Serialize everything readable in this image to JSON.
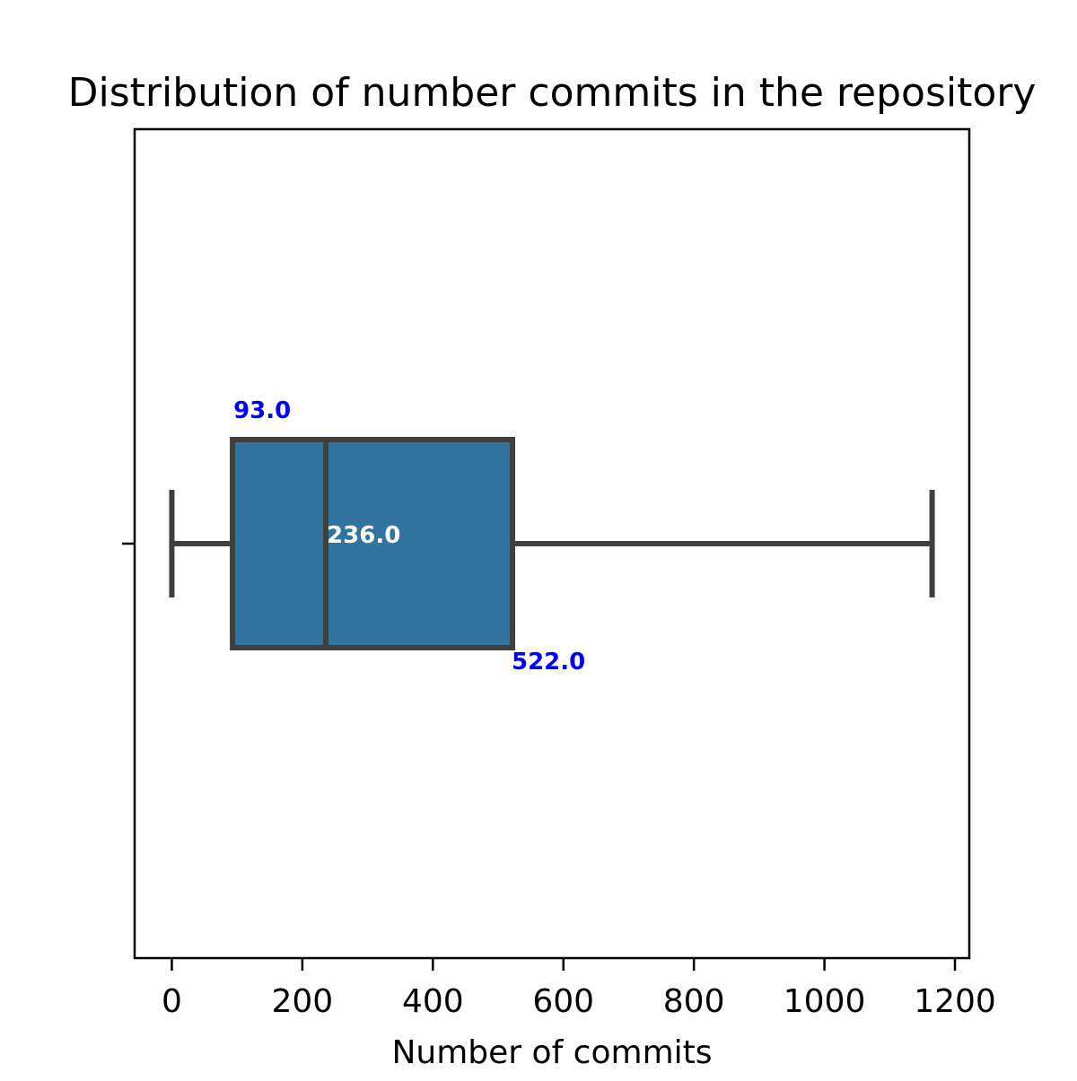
{
  "chart_data": {
    "type": "box",
    "title": "Distribution of number commits in the repository",
    "xlabel": "Number of commits",
    "ylabel": "",
    "xlim": [
      -57,
      1222
    ],
    "xticks": [
      0,
      200,
      400,
      600,
      800,
      1000,
      1200
    ],
    "xtick_labels": [
      "0",
      "200",
      "400",
      "600",
      "800",
      "1000",
      "1200"
    ],
    "orientation": "horizontal",
    "box": {
      "whisker_low": 0,
      "q1": 93.0,
      "median": 236.0,
      "q3": 522.0,
      "whisker_high": 1165
    },
    "annotations": {
      "q1_label": "93.0",
      "median_label": "236.0",
      "q3_label": "522.0"
    },
    "grid": false,
    "colors": {
      "box_fill": "#3274a1",
      "box_edge": "#3f3f3f",
      "q_label": "#0000ff",
      "median_label": "#ffffff"
    }
  }
}
